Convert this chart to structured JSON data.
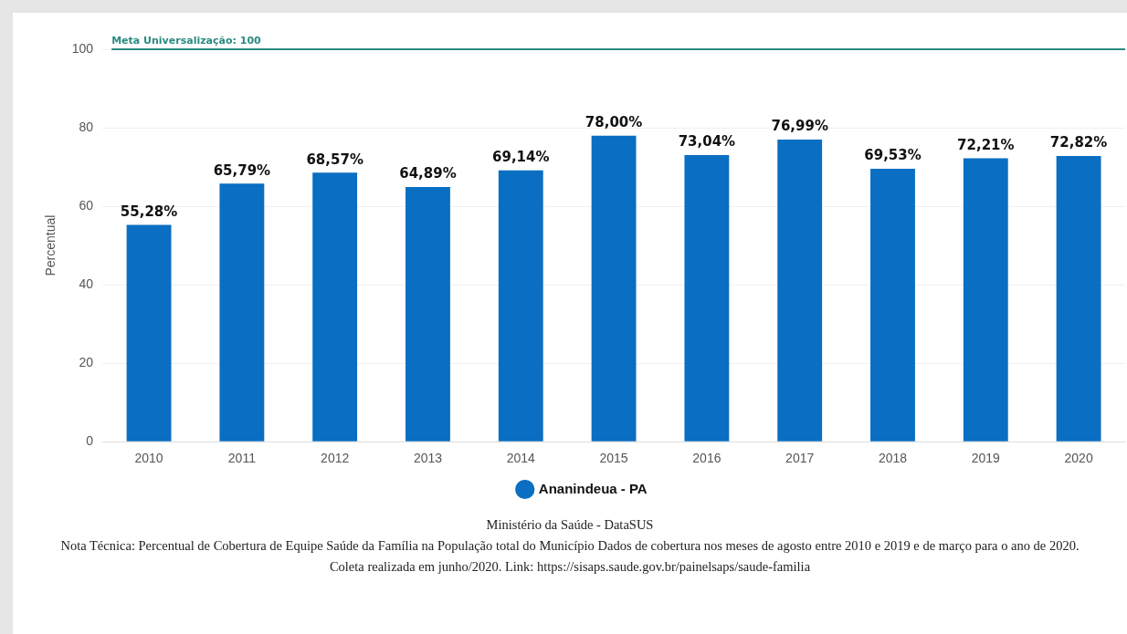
{
  "chart_data": {
    "type": "bar",
    "ylabel": "Percentual",
    "categories": [
      "2010",
      "2011",
      "2012",
      "2013",
      "2014",
      "2015",
      "2016",
      "2017",
      "2018",
      "2019",
      "2020"
    ],
    "series": [
      {
        "name": "Ananindeua - PA",
        "color": "#0a6ec2",
        "values": [
          55.28,
          65.79,
          68.57,
          64.89,
          69.14,
          78.0,
          73.04,
          76.99,
          69.53,
          72.21,
          72.82
        ],
        "value_labels": [
          "55,28%",
          "65,79%",
          "68,57%",
          "64,89%",
          "69,14%",
          "78,00%",
          "73,04%",
          "76,99%",
          "69,53%",
          "72,21%",
          "72,82%"
        ]
      }
    ],
    "ylim": [
      0,
      100
    ],
    "yticks": [
      0,
      20,
      40,
      60,
      80,
      100
    ],
    "grid": "y",
    "legend": "bottom",
    "ref_lines": [
      {
        "axis": "y",
        "value": 100,
        "label": "Meta Universalização: 100",
        "color": "#2a8a80"
      }
    ],
    "annotations": [
      "Ministério da Saúde - DataSUS",
      "Nota Técnica: Percentual de Cobertura de Equipe Saúde da Família na População total do Município Dados de cobertura nos meses de agosto entre 2010 e 2019 e de março para o ano de 2020. Coleta realizada em junho/2020. Link: https://sisaps.saude.gov.br/painelsaps/saude-familia"
    ]
  }
}
